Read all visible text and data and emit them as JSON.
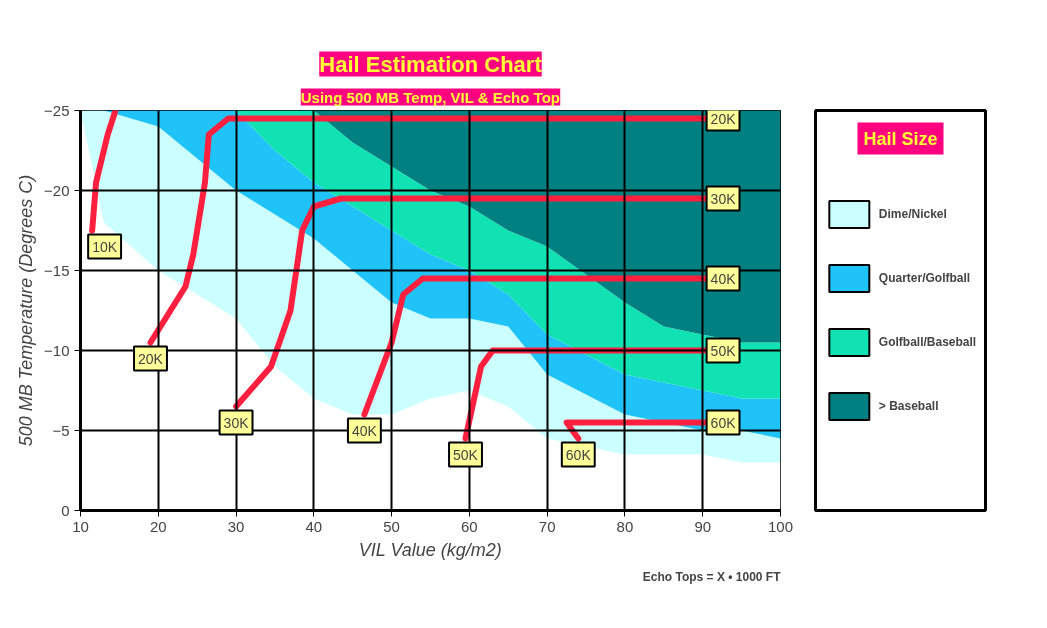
{
  "chart_data": {
    "type": "line",
    "title": "Hail Estimation Chart",
    "subtitle": "Using 500 MB Temp, VIL & Echo Top",
    "xlabel": "VIL Value (kg/m2)",
    "ylabel": "500 MB Temperature (Degrees C)",
    "legend_title": "Hail Size",
    "xlim": [
      10,
      100
    ],
    "xticks": [
      10,
      20,
      30,
      40,
      50,
      60,
      70,
      80,
      90,
      100
    ],
    "ylim": [
      0,
      -25
    ],
    "yticks": [
      0,
      -5,
      -10,
      -15,
      -20,
      -25
    ],
    "grid": true,
    "legend": "right",
    "stacked": true,
    "annotations": [
      "Echo Tops = X • 1000 FT"
    ],
    "series": [
      {
        "type": "area",
        "color": "#ffffff",
        "x": [
          10,
          13,
          20,
          25,
          30,
          35,
          40,
          45,
          50,
          55,
          60,
          65,
          70,
          80,
          85,
          90,
          95,
          100
        ],
        "values": [
          -25,
          -18,
          -15,
          -13.5,
          -12,
          -9,
          -7,
          -6,
          -6,
          -7,
          -7.5,
          -6.5,
          -4.5,
          -3.5,
          -3.5,
          -3.5,
          -3,
          -3
        ]
      },
      {
        "type": "area",
        "name": "Dime/Nickel",
        "color": "#ccffff",
        "x": [
          10,
          13,
          20,
          25,
          30,
          35,
          40,
          45,
          50,
          55,
          60,
          65,
          70,
          80,
          85,
          90,
          95,
          100
        ],
        "values": [
          0,
          -7,
          -9,
          -8.5,
          -8,
          -9.5,
          -10,
          -9,
          -7,
          -5,
          -4.5,
          -5,
          -4,
          -2.5,
          -2,
          -1.5,
          -2,
          -1.5
        ]
      },
      {
        "type": "area",
        "name": "Quarter/Golfball",
        "color": "#1fc3f7",
        "x": [
          10,
          13,
          20,
          25,
          30,
          35,
          40,
          45,
          50,
          55,
          60,
          65,
          70,
          80,
          85,
          90,
          95,
          100
        ],
        "values": [
          0,
          0,
          -1,
          -3,
          -5,
          -4,
          -3.5,
          -4,
          -4.5,
          -4,
          -3,
          -2,
          -2.5,
          -2.5,
          -2.5,
          -2.5,
          -2,
          -2.5
        ]
      },
      {
        "type": "area",
        "name": "Golfball/Baseball",
        "color": "#11e2b4",
        "x": [
          10,
          13,
          20,
          25,
          30,
          35,
          40,
          45,
          50,
          55,
          60,
          65,
          70,
          80,
          85,
          90,
          95,
          100
        ],
        "values": [
          0,
          0,
          0,
          0,
          0,
          -2.5,
          -4.5,
          -4,
          -4,
          -4,
          -4,
          -4,
          -5.5,
          -4.5,
          -3.5,
          -3.5,
          -3.5,
          -3.5
        ]
      },
      {
        "type": "area",
        "name": "> Baseball",
        "color": "#008080",
        "x": [
          10,
          13,
          20,
          25,
          30,
          35,
          40,
          45,
          50,
          55,
          60,
          65,
          70,
          80,
          85,
          90,
          95,
          100
        ],
        "values": [
          0,
          0,
          0,
          0,
          0,
          0,
          0,
          -2,
          -3.5,
          -5,
          -6,
          -7.5,
          -8.5,
          -12,
          -13.5,
          -14,
          -14.5,
          -14.5
        ]
      },
      {
        "name": "10K",
        "color": "#ff2040",
        "x": [
          11.5,
          12,
          13.5,
          14.5
        ],
        "values": [
          -17.5,
          -20.5,
          -23.5,
          -25
        ]
      },
      {
        "name": "20K",
        "color": "#ff2040",
        "x": [
          19,
          23.5,
          24.5,
          26,
          26.5,
          29,
          32,
          90.5
        ],
        "values": [
          -10.5,
          -14,
          -16,
          -20.5,
          -23.5,
          -24.5,
          -24.5,
          -24.5
        ]
      },
      {
        "name": "30K",
        "color": "#ff2040",
        "x": [
          30,
          34.5,
          37,
          38.5,
          40,
          43.5,
          90.5
        ],
        "values": [
          -6.5,
          -9,
          -12.5,
          -17.5,
          -19,
          -19.5,
          -19.5
        ]
      },
      {
        "name": "40K",
        "color": "#ff2040",
        "x": [
          46.5,
          50,
          51.5,
          54,
          90.5
        ],
        "values": [
          -6,
          -10.5,
          -13.5,
          -14.5,
          -14.5
        ]
      },
      {
        "name": "50K",
        "color": "#ff2040",
        "x": [
          59.5,
          61.5,
          63,
          90.5
        ],
        "values": [
          -4.5,
          -9,
          -10,
          -10
        ]
      },
      {
        "name": "60K",
        "color": "#ff2040",
        "x": [
          74,
          72.5,
          73,
          90.5
        ],
        "values": [
          -4.5,
          -5.5,
          -5.5,
          -5.5
        ]
      }
    ]
  }
}
